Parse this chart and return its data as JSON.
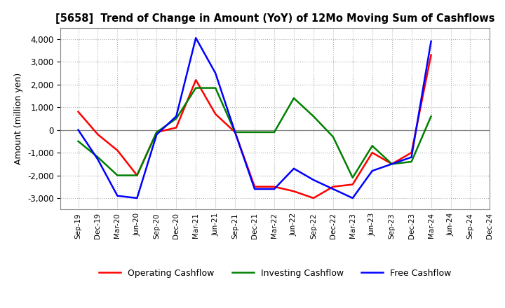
{
  "title": "[5658]  Trend of Change in Amount (YoY) of 12Mo Moving Sum of Cashflows",
  "ylabel": "Amount (million yen)",
  "x_labels": [
    "Sep-19",
    "Dec-19",
    "Mar-20",
    "Jun-20",
    "Sep-20",
    "Dec-20",
    "Mar-21",
    "Jun-21",
    "Sep-21",
    "Dec-21",
    "Mar-22",
    "Jun-22",
    "Sep-22",
    "Dec-22",
    "Mar-23",
    "Jun-23",
    "Sep-23",
    "Dec-23",
    "Mar-24",
    "Jun-24",
    "Sep-24",
    "Dec-24"
  ],
  "operating": [
    800,
    -200,
    -900,
    -2000,
    -100,
    100,
    2200,
    700,
    -100,
    -2500,
    -2500,
    -2700,
    -3000,
    -2500,
    -2400,
    -1000,
    -1500,
    -1000,
    3300,
    null,
    null,
    null
  ],
  "investing": [
    -500,
    -1200,
    -2000,
    -2000,
    -100,
    500,
    1850,
    1850,
    -100,
    -100,
    -100,
    1400,
    600,
    -300,
    -2100,
    -700,
    -1500,
    -1400,
    600,
    null,
    null,
    null
  ],
  "free": [
    0,
    -1300,
    -2900,
    -3000,
    -200,
    600,
    4050,
    2500,
    -100,
    -2600,
    -2600,
    -1700,
    -2200,
    -2600,
    -3000,
    -1800,
    -1500,
    -1200,
    3900,
    null,
    null,
    null
  ],
  "operating_color": "#ff0000",
  "investing_color": "#008000",
  "free_color": "#0000ff",
  "ylim": [
    -3500,
    4500
  ],
  "yticks": [
    -3000,
    -2000,
    -1000,
    0,
    1000,
    2000,
    3000,
    4000
  ],
  "background_color": "#ffffff",
  "grid_color": "#b0b0b0"
}
